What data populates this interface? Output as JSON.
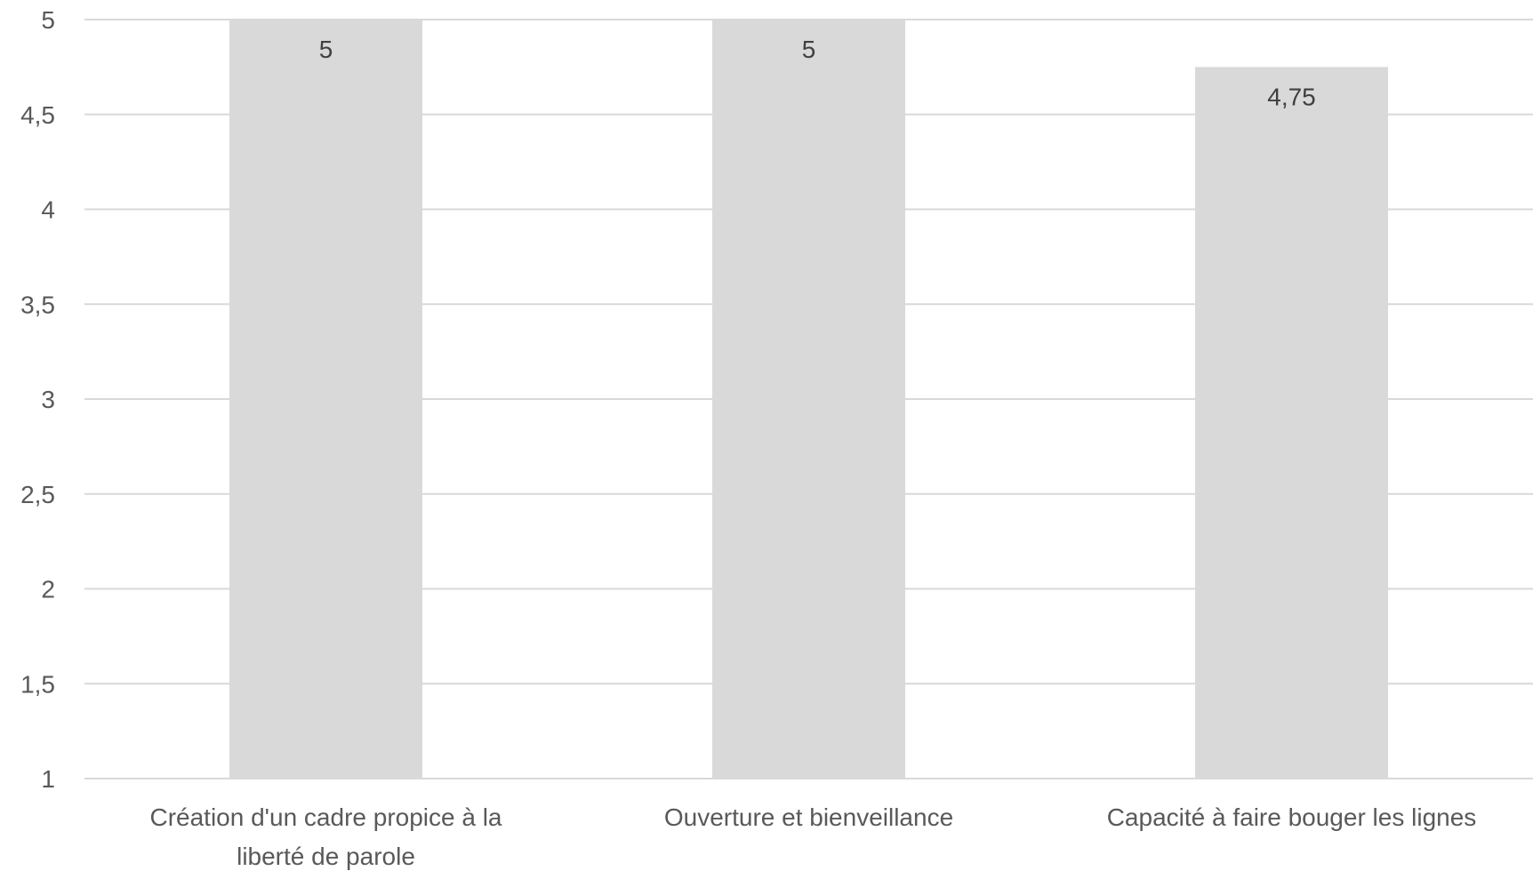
{
  "chart_data": {
    "type": "bar",
    "categories": [
      [
        "Création d'un cadre propice à la",
        "liberté de parole"
      ],
      [
        "Ouverture et bienveillance"
      ],
      [
        "Capacité à faire bouger les lignes"
      ]
    ],
    "values": [
      5,
      5,
      4.75
    ],
    "data_labels": [
      "5",
      "5",
      "4,75"
    ],
    "ylim": [
      1,
      5
    ],
    "yticks": [
      1,
      1.5,
      2,
      2.5,
      3,
      3.5,
      4,
      4.5,
      5
    ],
    "ytick_labels": [
      "1",
      "1,5",
      "2",
      "2,5",
      "3",
      "3,5",
      "4",
      "4,5",
      "5"
    ],
    "title": "",
    "xlabel": "",
    "ylabel": "",
    "grid": true,
    "legend": "none",
    "colors": {
      "bar": "#d9d9d9",
      "grid": "#d9d9d9",
      "text": "#595959",
      "data_label": "#404040"
    }
  }
}
